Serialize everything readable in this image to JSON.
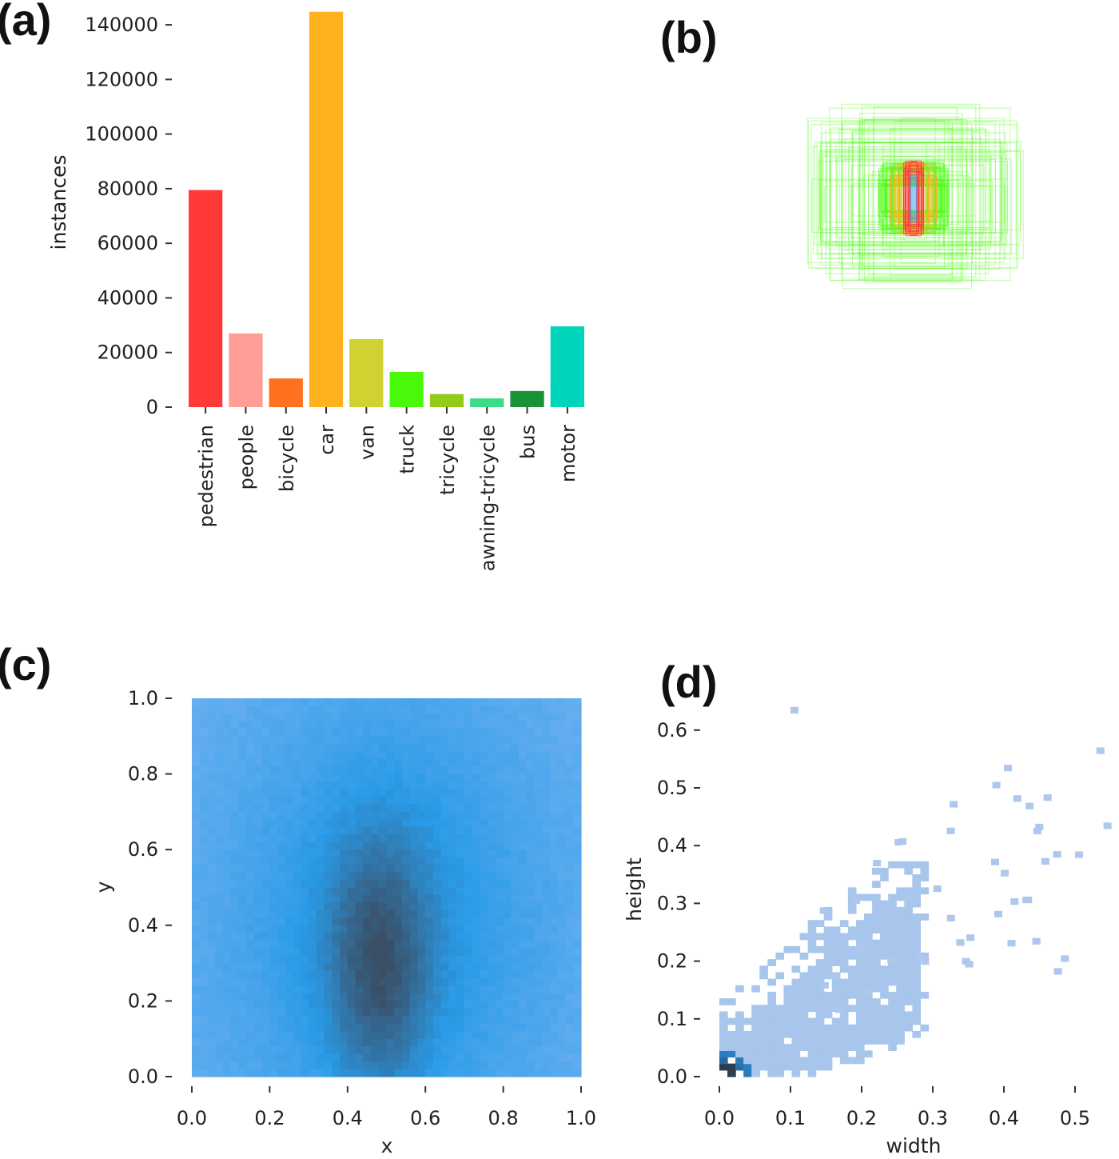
{
  "panels": {
    "a": "(a)",
    "b": "(b)",
    "c": "(c)",
    "d": "(d)"
  },
  "chart_data": [
    {
      "id": "a",
      "type": "bar",
      "title": "",
      "xlabel": "",
      "ylabel": "instances",
      "ylim": [
        0,
        145000
      ],
      "yticks": [
        0,
        20000,
        40000,
        60000,
        80000,
        100000,
        120000,
        140000
      ],
      "categories": [
        "pedestrian",
        "people",
        "bicycle",
        "car",
        "van",
        "truck",
        "tricycle",
        "awning-tricycle",
        "bus",
        "motor"
      ],
      "values": [
        79500,
        27000,
        10500,
        144800,
        24900,
        12900,
        4800,
        3200,
        5900,
        29600
      ],
      "colors": [
        "#ff3838",
        "#ff9d97",
        "#ff701f",
        "#ffb21d",
        "#cfd231",
        "#48f90a",
        "#92cc17",
        "#3ddb86",
        "#1a9334",
        "#00d4bb"
      ]
    },
    {
      "id": "b",
      "type": "other",
      "description_label": "",
      "box_colors": [
        "#ff3838",
        "#ffb21d",
        "#48f90a"
      ]
    },
    {
      "id": "c",
      "type": "heatmap",
      "xlabel": "x",
      "ylabel": "y",
      "xlim": [
        0,
        1
      ],
      "ylim": [
        0,
        1
      ],
      "xticks": [
        "0.0",
        "0.2",
        "0.4",
        "0.6",
        "0.8",
        "1.0"
      ],
      "yticks": [
        "0.0",
        "0.2",
        "0.4",
        "0.6",
        "0.8",
        "1.0"
      ],
      "hot_center": [
        0.48,
        0.28
      ],
      "colors": {
        "low": "#7fb6f2",
        "mid": "#2a9be8",
        "high": "#3a4f66"
      }
    },
    {
      "id": "d",
      "type": "heatmap",
      "xlabel": "width",
      "ylabel": "height",
      "xlim": [
        0,
        0.55
      ],
      "ylim": [
        0,
        0.65
      ],
      "xticks": [
        "0.0",
        "0.1",
        "0.2",
        "0.3",
        "0.4",
        "0.5"
      ],
      "yticks": [
        "0.0",
        "0.1",
        "0.2",
        "0.3",
        "0.4",
        "0.5",
        "0.6"
      ],
      "colors": {
        "low": "#adc8ec",
        "mid": "#2a8ee0",
        "high": "#2c3e50"
      }
    }
  ]
}
